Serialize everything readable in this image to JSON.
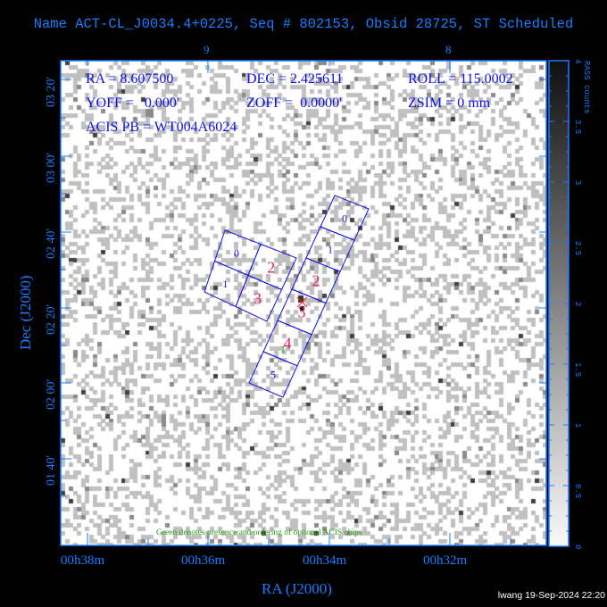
{
  "title": "Name ACT-CL_J0034.4+0225, Seq # 802153, Obsid 28725, ST Scheduled",
  "info": {
    "ra": "RA = 8.607500",
    "dec": "DEC = 2.425611",
    "roll": "ROLL = 115.0002",
    "yoff": "YOFF =   0.000'",
    "zoff": "ZOFF =  0.0000'",
    "zsim": "ZSIM = 0 mm",
    "acis_pb": "ACIS PB = WT004A6024"
  },
  "x_axis": {
    "label": "RA (J2000)",
    "ticks": [
      "00h38m",
      "00h36m",
      "00h34m",
      "00h32m"
    ],
    "top_ticks": [
      "9",
      "8"
    ]
  },
  "y_axis": {
    "label": "Dec (J2000)",
    "ticks": [
      "03 20'",
      "03 00'",
      "02 40'",
      "02 20'",
      "02 00'",
      "01 40'"
    ]
  },
  "colorbar": {
    "label": "RASS counts",
    "ticks": [
      "4",
      "3.5",
      "3",
      "2.5",
      "2",
      "1.5",
      "1",
      "0.5",
      "0"
    ],
    "range": [
      0,
      4
    ]
  },
  "chips": {
    "i_array": [
      "0",
      "2",
      "1",
      "3"
    ],
    "s_array": [
      "0",
      "1",
      "2",
      "3",
      "4",
      "5"
    ],
    "optional_marker": "1"
  },
  "note": "Green denotes presence and ordering of optional ACIS chips",
  "footer": "lwang 19-Sep-2024 22:20",
  "colors": {
    "axis": "#1a7cff",
    "chip_outline": "#1010e0",
    "chip_active": "#e0206a",
    "optional": "#2a9a10",
    "target": "#ff2020"
  }
}
